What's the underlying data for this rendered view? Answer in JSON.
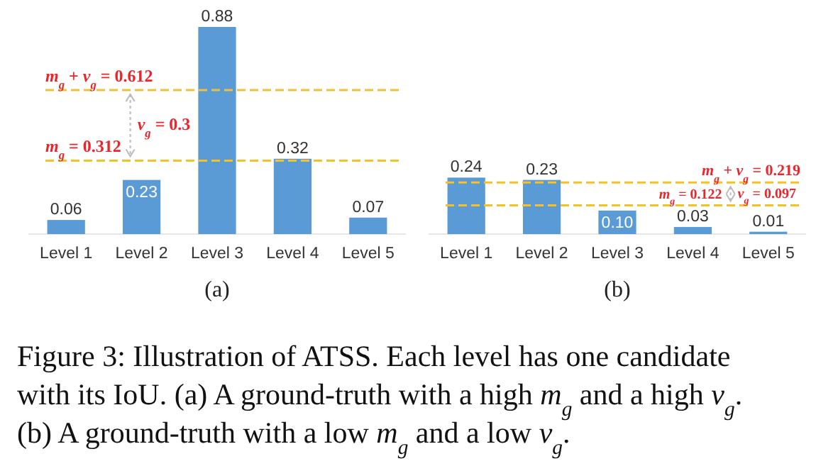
{
  "chart_data": [
    {
      "type": "bar",
      "title": "(a)",
      "categories": [
        "Level 1",
        "Level 2",
        "Level 3",
        "Level 4",
        "Level 5"
      ],
      "values": [
        0.06,
        0.23,
        0.88,
        0.32,
        0.07
      ],
      "color": "#5b9bd5",
      "data_labels": true,
      "ref_lines": [
        {
          "axis": "y",
          "value": 0.612,
          "label": "m$_{g}$ + v$_{g}$ = 0.612",
          "color": "#f2c12e",
          "line_style": "dashed"
        },
        {
          "axis": "y",
          "value": 0.312,
          "label": "m$_{g}$ = 0.312",
          "color": "#f2c12e",
          "line_style": "dashed"
        }
      ],
      "annotations": [
        "v$_{g}$ = 0.3"
      ]
    },
    {
      "type": "bar",
      "title": "(b)",
      "categories": [
        "Level 1",
        "Level 2",
        "Level 3",
        "Level 4",
        "Level 5"
      ],
      "values": [
        0.24,
        0.23,
        0.1,
        0.03,
        0.01
      ],
      "color": "#5b9bd5",
      "value_labels": [
        "0.24",
        "0.23",
        "0.10",
        "0.03",
        "0.01"
      ],
      "ref_lines": [
        {
          "axis": "y",
          "value": 0.219,
          "label": "m$_{g}$ + v$_{g}$ = 0.219",
          "color": "#f2c12e",
          "line_style": "dashed"
        },
        {
          "axis": "y",
          "value": 0.122,
          "label": "m$_{g}$ = 0.122",
          "color": "#f2c12e",
          "line_style": "dashed"
        }
      ],
      "annotations": [
        "v$_{g}$ = 0.097"
      ]
    },
    {
      "type": "other",
      "annotations": [
        "Figure 3: Illustration of ATSS. Each level has one candidate with its IoU. (a) A ground-truth with a high m$_{g}$ and a high v$_{g}$. (b) A ground-truth with a low m$_{g}$ and a low v$_{g}$."
      ]
    }
  ]
}
